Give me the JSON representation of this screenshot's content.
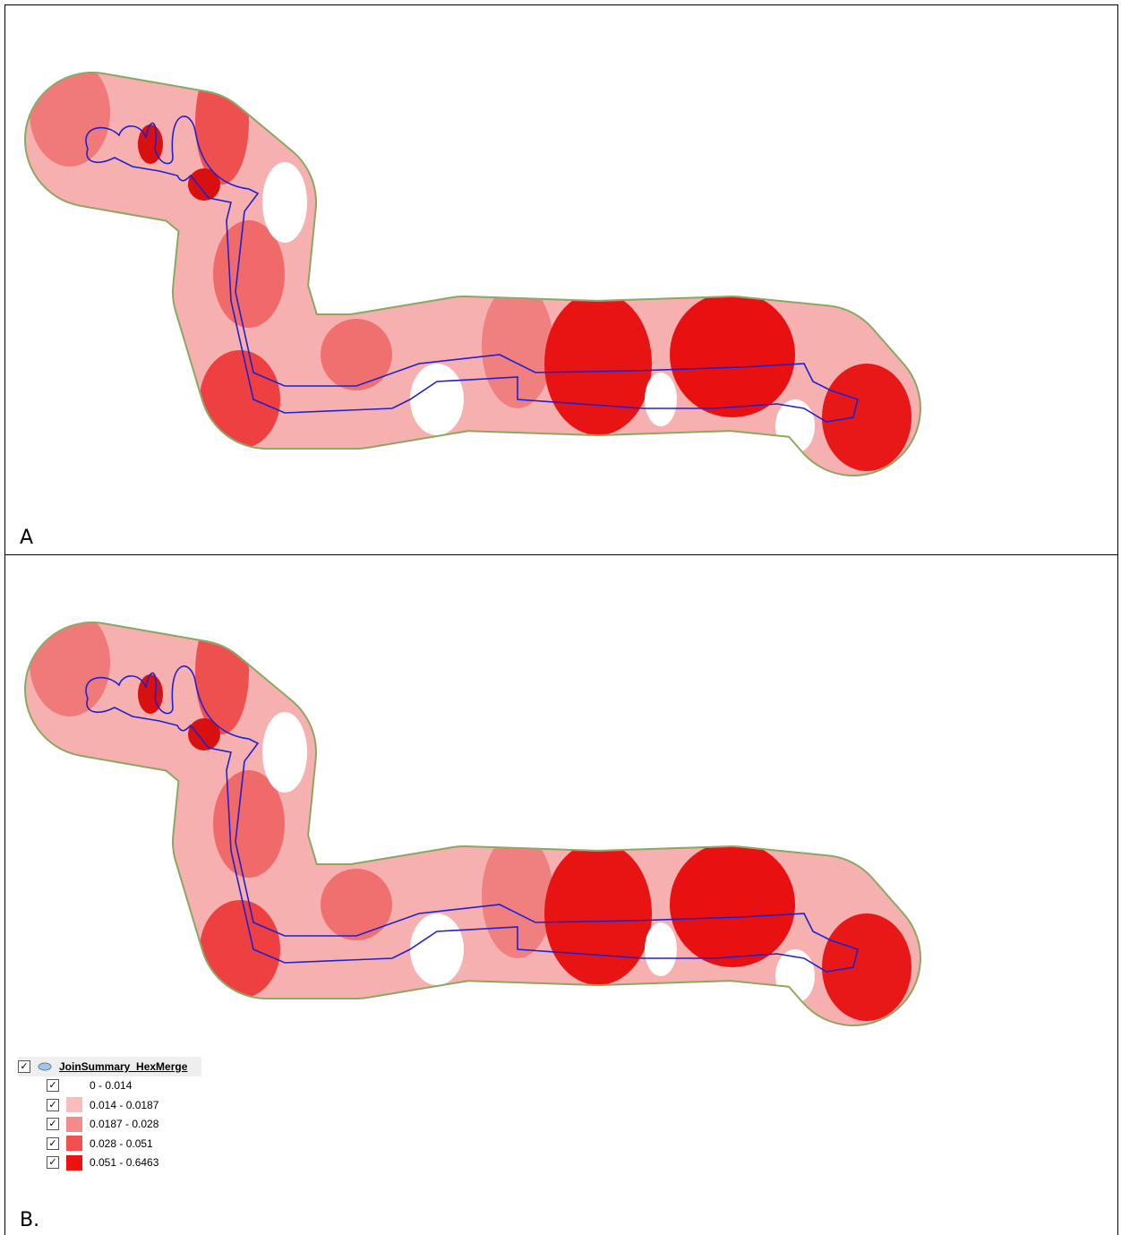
{
  "panels": [
    {
      "label": "A"
    },
    {
      "label": "B."
    }
  ],
  "legend": {
    "title": "JoinSummary_HexMerge",
    "classes": [
      {
        "label": "0 - 0.014",
        "color": "#ffffff"
      },
      {
        "label": "0.014 - 0.0187",
        "color": "#fbbcbc"
      },
      {
        "label": "0.0187 - 0.028",
        "color": "#f58a8a"
      },
      {
        "label": "0.028 - 0.051",
        "color": "#f05050"
      },
      {
        "label": "0.051 - 0.6463",
        "color": "#ee1111"
      }
    ]
  }
}
